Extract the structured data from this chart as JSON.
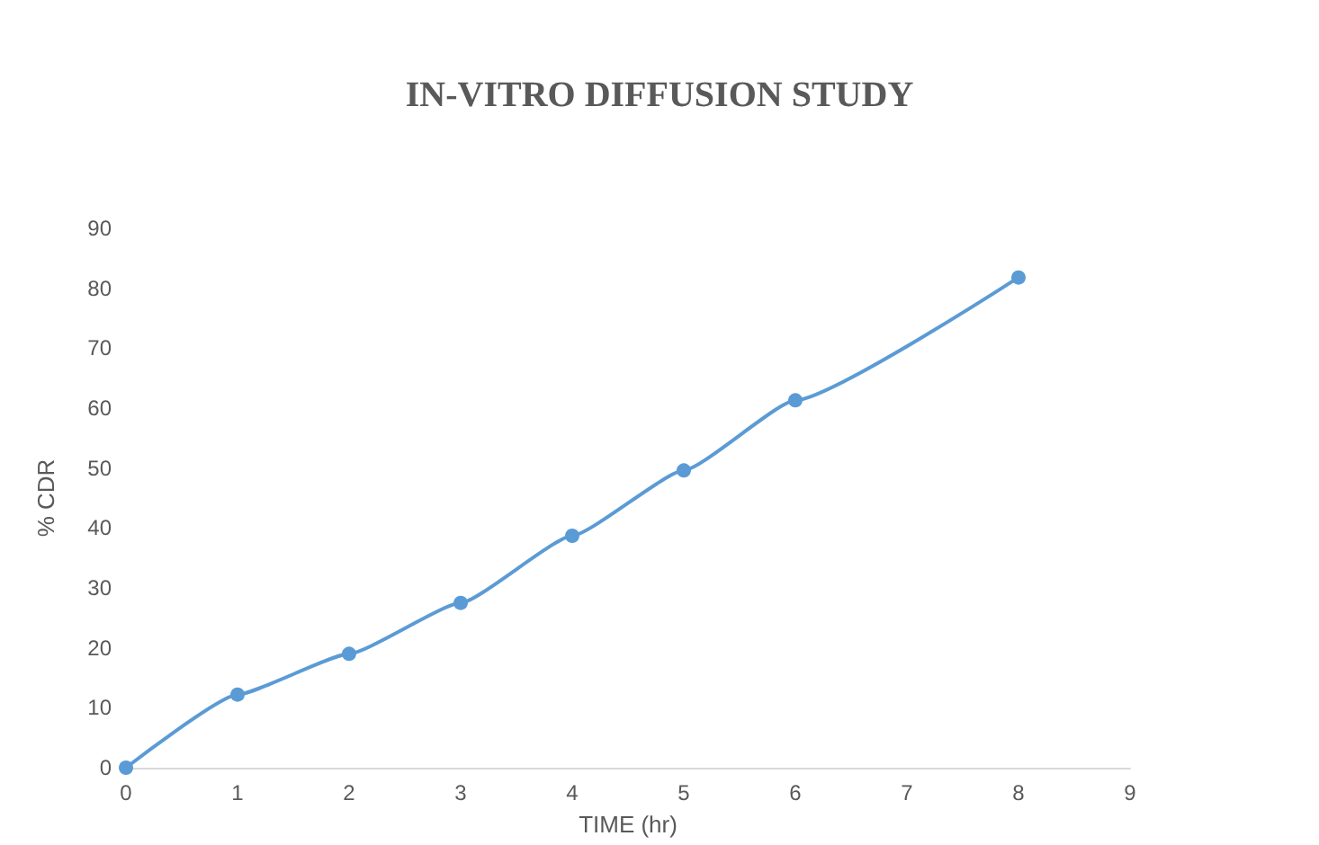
{
  "chart_data": {
    "type": "line",
    "title": "IN-VITRO DIFFUSION STUDY",
    "xlabel": "TIME (hr)",
    "ylabel": "% CDR",
    "x": [
      0,
      1,
      2,
      3,
      4,
      5,
      6,
      8
    ],
    "series": [
      {
        "color": "#5b9bd5",
        "values": [
          0,
          12.2,
          19,
          27.5,
          38.7,
          49.6,
          61.3,
          81.8
        ]
      }
    ],
    "xlim": [
      0,
      9
    ],
    "xticks": [
      0,
      1,
      2,
      3,
      4,
      5,
      6,
      7,
      8,
      9
    ],
    "ylim": [
      0,
      90
    ],
    "yticks": [
      0,
      10,
      20,
      30,
      40,
      50,
      60,
      70,
      80,
      90
    ],
    "grid": false,
    "marker": "circle",
    "line_style": "solid"
  }
}
